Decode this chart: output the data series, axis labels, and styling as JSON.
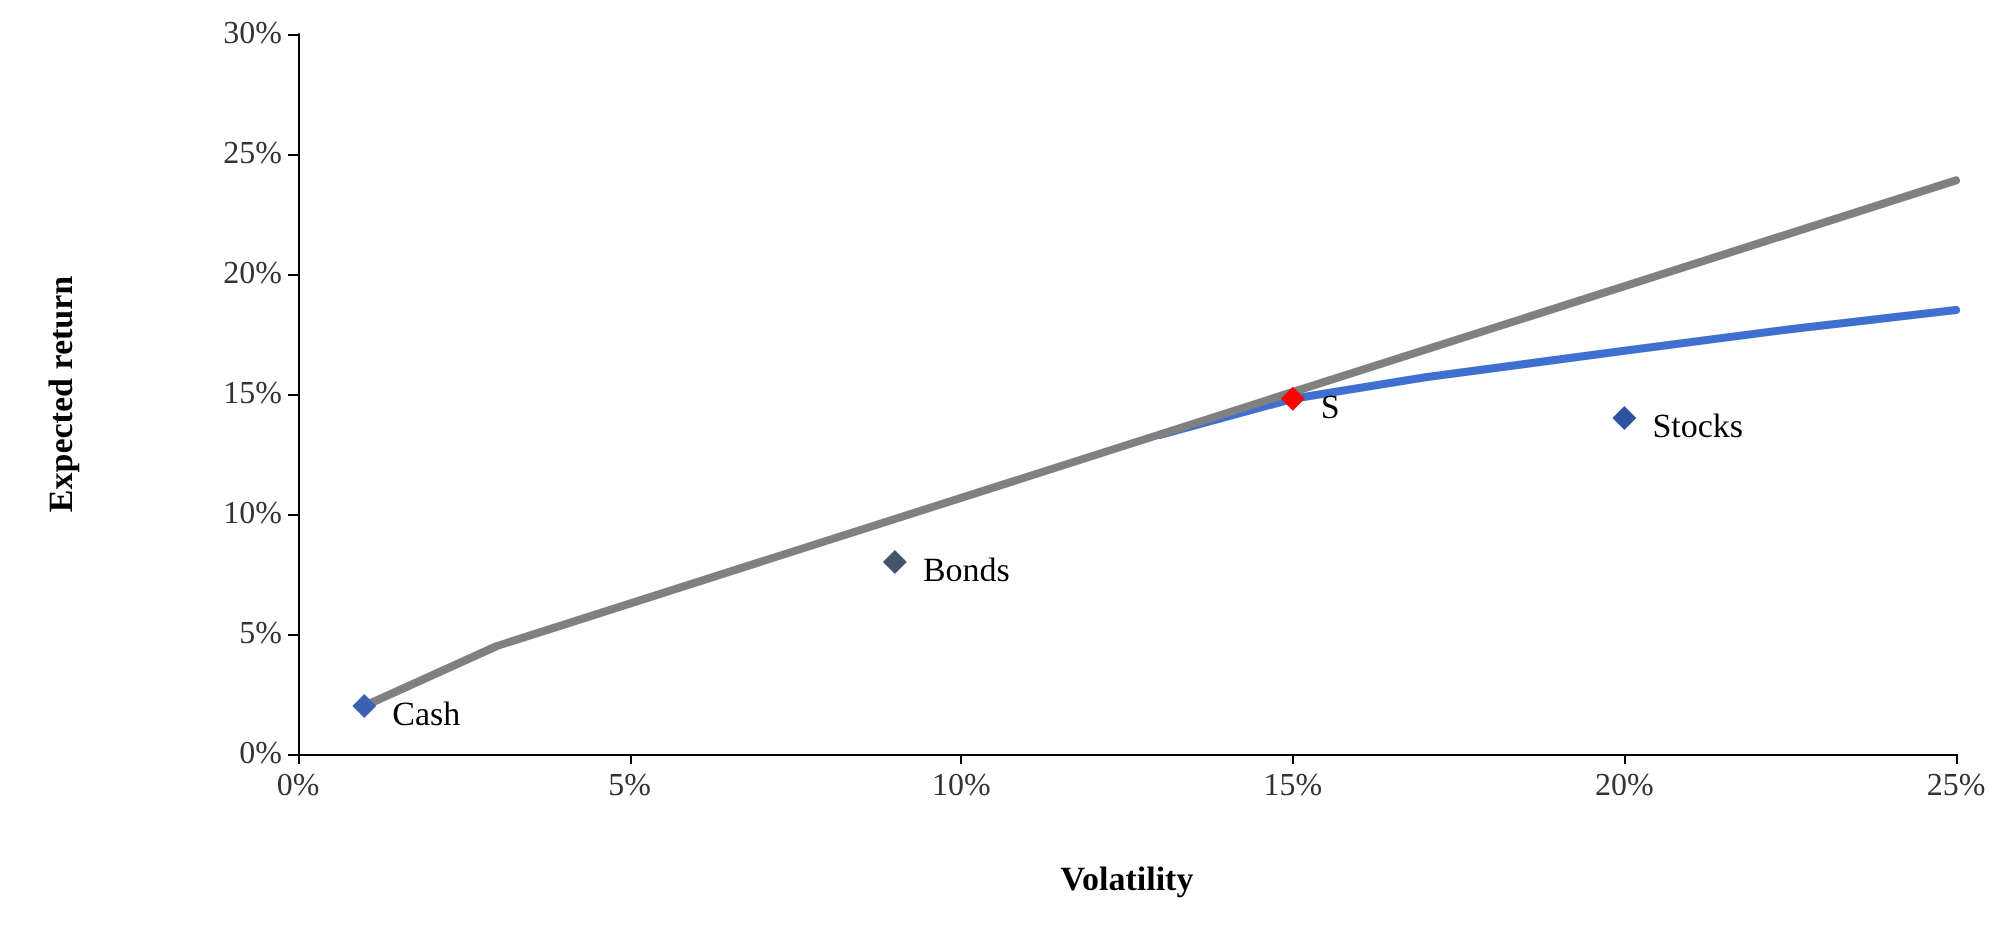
{
  "chart_data": {
    "type": "scatter",
    "xlabel": "Volatility",
    "ylabel": "Expected return",
    "xlim": [
      0,
      25
    ],
    "ylim": [
      0,
      30
    ],
    "xticks": [
      {
        "value": 0,
        "label": "0%"
      },
      {
        "value": 5,
        "label": "5%"
      },
      {
        "value": 10,
        "label": "10%"
      },
      {
        "value": 15,
        "label": "15%"
      },
      {
        "value": 20,
        "label": "20%"
      },
      {
        "value": 25,
        "label": "25%"
      }
    ],
    "yticks": [
      {
        "value": 0,
        "label": "0%"
      },
      {
        "value": 5,
        "label": "5%"
      },
      {
        "value": 10,
        "label": "10%"
      },
      {
        "value": 15,
        "label": "15%"
      },
      {
        "value": 20,
        "label": "20%"
      },
      {
        "value": 25,
        "label": "25%"
      },
      {
        "value": 30,
        "label": "30%"
      }
    ],
    "grid": false,
    "legend": false,
    "series": [
      {
        "type": "line",
        "color": "#3f6fd0",
        "marker": "none",
        "x": [
          13,
          15,
          17,
          20,
          22.5,
          25
        ],
        "values": [
          13.3,
          14.8,
          15.7,
          16.8,
          17.7,
          18.5
        ]
      },
      {
        "type": "line",
        "color": "#808080",
        "marker": "none",
        "x": [
          1,
          3,
          25
        ],
        "values": [
          2,
          4.5,
          23.9
        ]
      },
      {
        "name": "Cash",
        "color": "#3a62b0",
        "marker": "diamond",
        "x": [
          1
        ],
        "values": [
          2
        ]
      },
      {
        "name": "Bonds",
        "color": "#44546a",
        "marker": "diamond",
        "x": [
          9
        ],
        "values": [
          8
        ]
      },
      {
        "name": "Stocks",
        "color": "#2f52a0",
        "marker": "diamond",
        "x": [
          20
        ],
        "values": [
          14
        ]
      },
      {
        "name": "S",
        "color": "#ff0000",
        "marker": "diamond",
        "x": [
          15
        ],
        "values": [
          14.8
        ]
      }
    ]
  }
}
